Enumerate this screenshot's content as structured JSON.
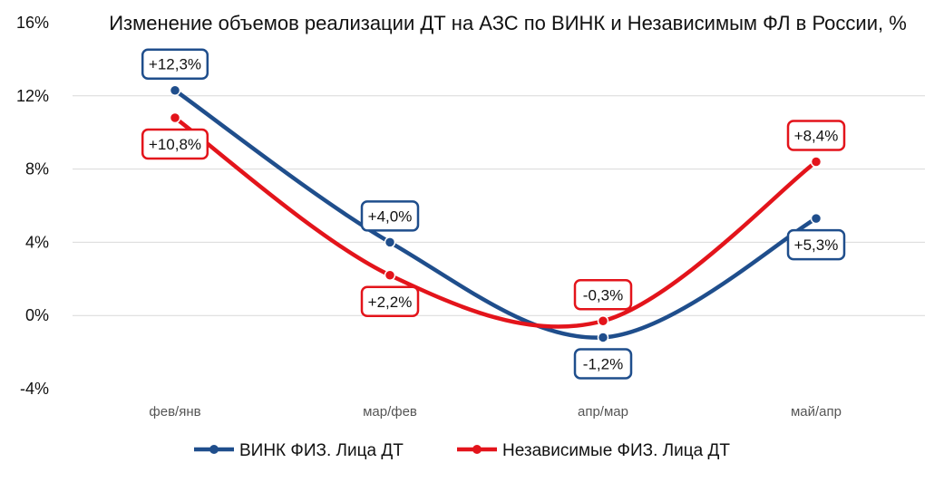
{
  "chart_data": {
    "type": "line",
    "title": "Изменение объемов реализации ДТ на АЗС по ВИНК и Независимым ФЛ в России, %",
    "categories": [
      "фев/янв",
      "мар/фев",
      "апр/мар",
      "май/апр"
    ],
    "ylim": [
      -4,
      16
    ],
    "yticks": [
      -4,
      0,
      4,
      8,
      12,
      16
    ],
    "ytick_labels": [
      "-4%",
      "0%",
      "4%",
      "8%",
      "12%",
      "16%"
    ],
    "grid": true,
    "legend_position": "bottom",
    "series": [
      {
        "name": "ВИНК ФИЗ. Лица ДТ",
        "color": "#1F4E8C",
        "values": [
          12.3,
          4.0,
          -1.2,
          5.3
        ],
        "labels": [
          "+12,3%",
          "+4,0%",
          "-1,2%",
          "+5,3%"
        ]
      },
      {
        "name": "Независимые ФИЗ. Лица ДТ",
        "color": "#E3141B",
        "values": [
          10.8,
          2.2,
          -0.3,
          8.4
        ],
        "labels": [
          "+10,8%",
          "+2,2%",
          "-0,3%",
          "+8,4%"
        ]
      }
    ]
  }
}
